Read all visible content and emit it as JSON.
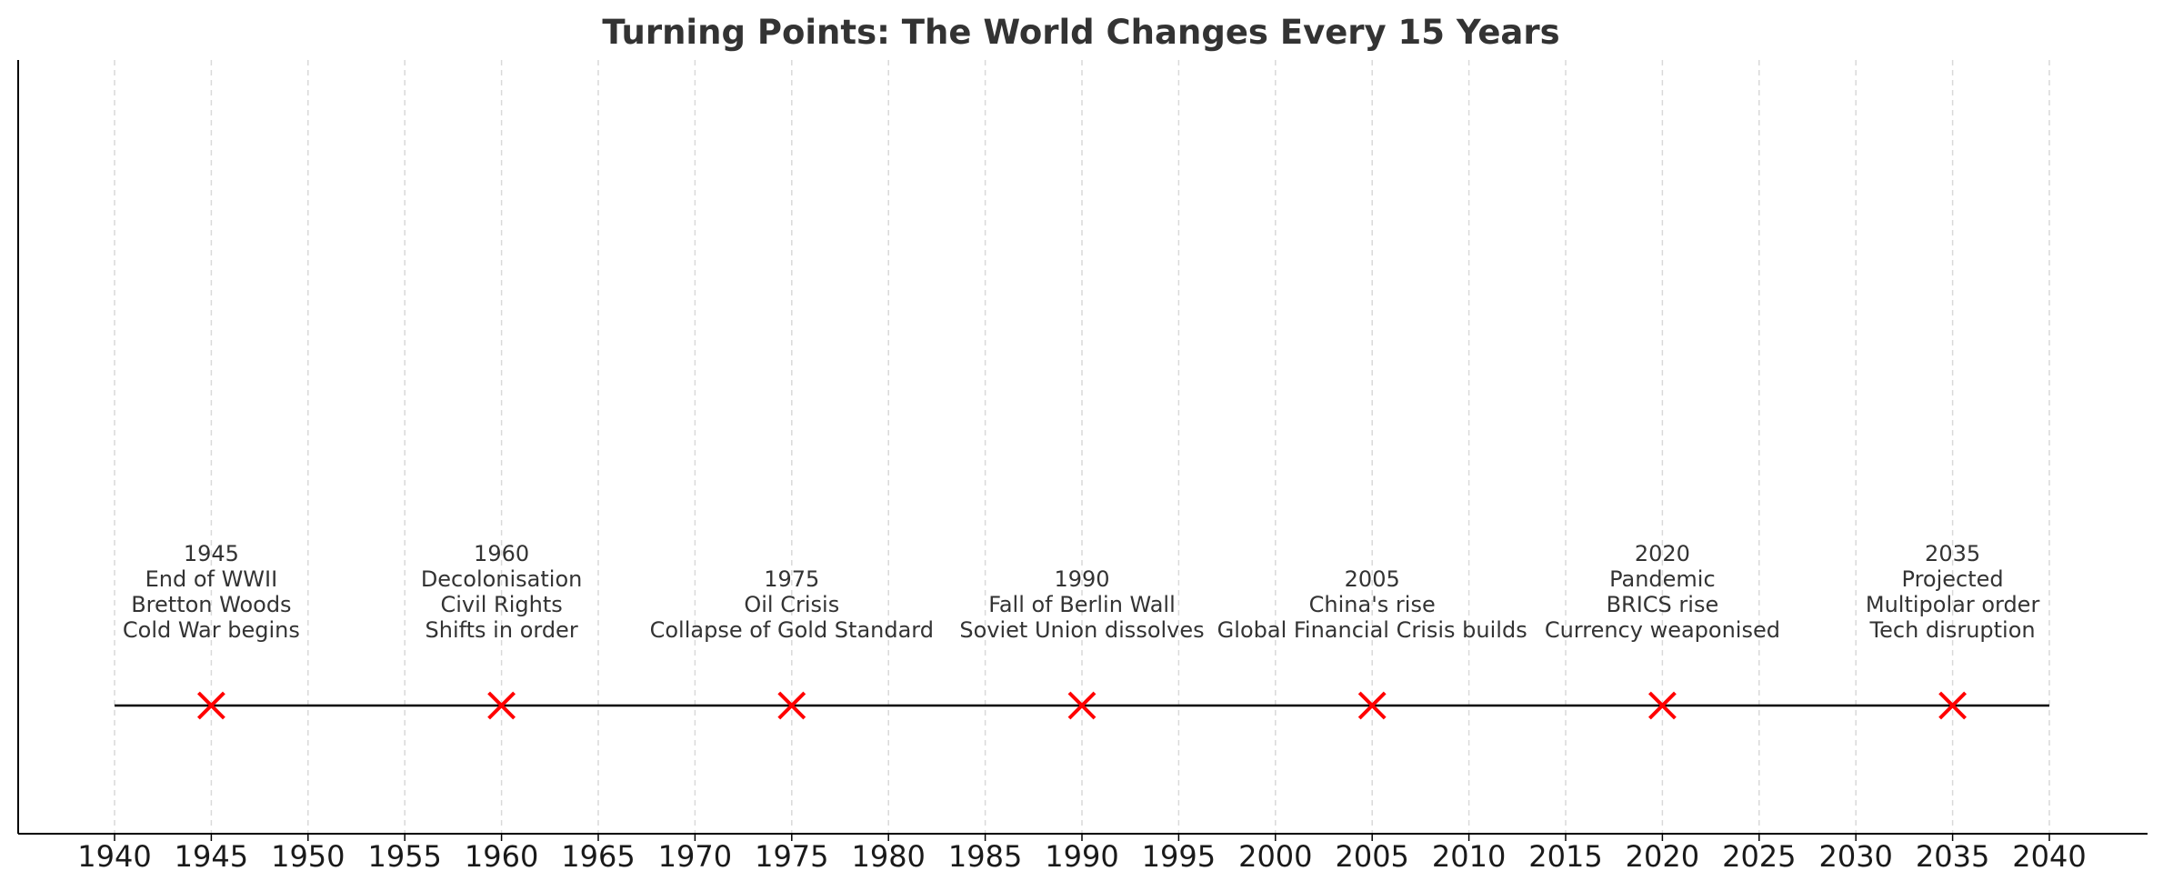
{
  "chart_data": {
    "type": "scatter",
    "title": "Turning Points: The World Changes Every 15 Years",
    "xlabel": "",
    "ylabel": "",
    "xlim": [
      1935,
      2045
    ],
    "xticks": [
      1940,
      1945,
      1950,
      1955,
      1960,
      1965,
      1970,
      1975,
      1980,
      1985,
      1990,
      1995,
      2000,
      2005,
      2010,
      2015,
      2020,
      2025,
      2030,
      2035,
      2040
    ],
    "grid": "vertical dashed",
    "timeline_range": [
      1940,
      2040
    ],
    "marker": "x",
    "colors": {
      "marker": "#ff0000",
      "timeline": "#000000",
      "grid": "#d9d9d9",
      "axis": "#000000",
      "text": "#333333"
    },
    "events": [
      {
        "year": 1945,
        "lines": [
          "1945",
          "End of WWII",
          "Bretton Woods",
          "Cold War begins"
        ]
      },
      {
        "year": 1960,
        "lines": [
          "1960",
          "Decolonisation",
          "Civil Rights",
          "Shifts in order"
        ]
      },
      {
        "year": 1975,
        "lines": [
          "1975",
          "Oil Crisis",
          "Collapse of Gold Standard"
        ]
      },
      {
        "year": 1990,
        "lines": [
          "1990",
          "Fall of Berlin Wall",
          "Soviet Union dissolves"
        ]
      },
      {
        "year": 2005,
        "lines": [
          "2005",
          "China's rise",
          "Global Financial Crisis builds"
        ]
      },
      {
        "year": 2020,
        "lines": [
          "2020",
          "Pandemic",
          "BRICS rise",
          "Currency weaponised"
        ]
      },
      {
        "year": 2035,
        "lines": [
          "2035",
          "Projected",
          "Multipolar order",
          "Tech disruption"
        ]
      }
    ]
  }
}
